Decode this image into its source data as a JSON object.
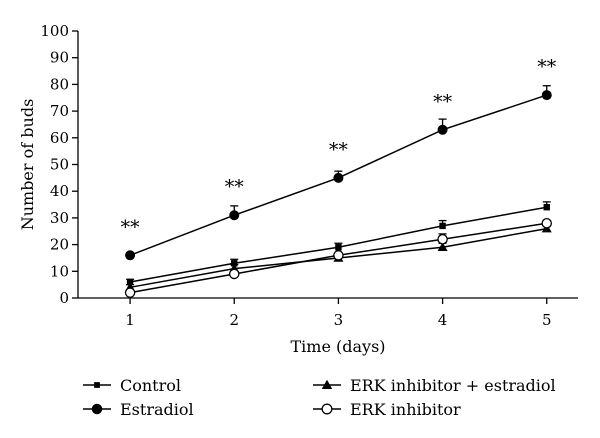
{
  "chart_data": {
    "type": "line",
    "title": "",
    "xlabel": "Time (days)",
    "ylabel": "Number of buds",
    "x": [
      1,
      2,
      3,
      4,
      5
    ],
    "xlim": [
      0.5,
      5.3
    ],
    "ylim": [
      0,
      100
    ],
    "yticks": [
      0,
      10,
      20,
      30,
      40,
      50,
      60,
      70,
      80,
      90,
      100
    ],
    "grid": false,
    "legend_position": "bottom",
    "series": [
      {
        "name": "Control",
        "marker": "square",
        "values": [
          6,
          13,
          19,
          27,
          34
        ],
        "errors": [
          1,
          1.5,
          1.5,
          2,
          2
        ]
      },
      {
        "name": "Estradiol",
        "marker": "circle",
        "values": [
          16,
          31,
          45,
          63,
          76
        ],
        "errors": [
          1,
          3.5,
          2.5,
          4,
          3.5
        ]
      },
      {
        "name": "ERK inhibitor + estradiol",
        "marker": "triangle",
        "values": [
          4,
          11,
          15,
          19,
          26
        ],
        "errors": [
          1,
          1.5,
          1,
          1.5,
          1
        ]
      },
      {
        "name": "ERK inhibitor",
        "marker": "open-circle",
        "values": [
          2,
          9,
          16,
          22,
          28
        ],
        "errors": [
          1,
          1,
          1,
          2,
          1
        ]
      }
    ],
    "annotations": [
      {
        "x": 1,
        "y": 16,
        "text": "**"
      },
      {
        "x": 2,
        "y": 31,
        "text": "**"
      },
      {
        "x": 3,
        "y": 45,
        "text": "**"
      },
      {
        "x": 4,
        "y": 63,
        "text": "**"
      },
      {
        "x": 5,
        "y": 76,
        "text": "**"
      }
    ]
  }
}
